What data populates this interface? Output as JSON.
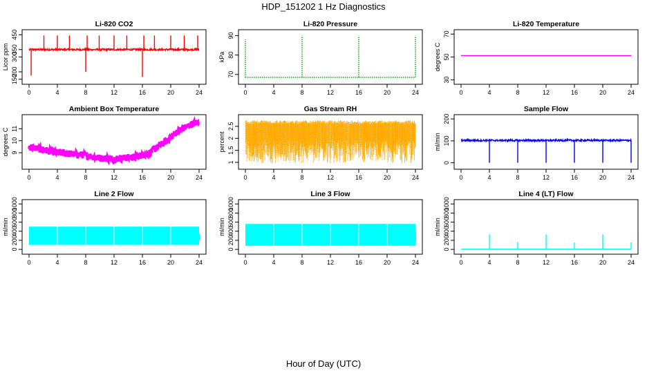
{
  "figure": {
    "title": "HDP_151202  1 Hz Diagnostics",
    "xlabel": "Hour of Day (UTC)"
  },
  "chart_data": [
    {
      "type": "line",
      "title": "Li-820 CO2",
      "ylabel": "Licor ppm",
      "color": "#ff0000",
      "xlim": [
        0,
        24
      ],
      "ylim": [
        130,
        470
      ],
      "xticks": [
        0,
        4,
        8,
        12,
        16,
        20,
        24
      ],
      "yticks": [
        150,
        200,
        300,
        350,
        450
      ],
      "series": [
        {
          "name": "CO2",
          "base": {
            "pattern": "noisy",
            "value": 350,
            "noise": 6
          },
          "spikes": [
            [
              0.3,
              175
            ],
            [
              2.1,
              445
            ],
            [
              4,
              445
            ],
            [
              5.7,
              445
            ],
            [
              8,
              200
            ],
            [
              8.2,
              445
            ],
            [
              9.9,
              445
            ],
            [
              12,
              445
            ],
            [
              13.8,
              445
            ],
            [
              16,
              165
            ],
            [
              16.2,
              445
            ],
            [
              17.7,
              445
            ],
            [
              20,
              445
            ],
            [
              21.9,
              445
            ],
            [
              23.8,
              445
            ]
          ]
        }
      ]
    },
    {
      "type": "line",
      "title": "Li-820 Pressure",
      "ylabel": "kPa",
      "color": "#00aa00",
      "style": "dotted",
      "xlim": [
        0,
        24
      ],
      "ylim": [
        66,
        92
      ],
      "xticks": [
        0,
        4,
        8,
        12,
        16,
        20,
        24
      ],
      "yticks": [
        70,
        80,
        90
      ],
      "series": [
        {
          "name": "Pressure",
          "base": {
            "pattern": "flat",
            "value": 68.5
          },
          "spikes": [
            [
              0,
              88
            ],
            [
              8,
              90
            ],
            [
              16,
              90
            ],
            [
              24,
              90
            ]
          ]
        }
      ]
    },
    {
      "type": "line",
      "title": "Li-820 Temperature",
      "ylabel": "degrees C",
      "color": "#ff00ff",
      "xlim": [
        0,
        24
      ],
      "ylim": [
        28,
        72
      ],
      "xticks": [
        0,
        4,
        8,
        12,
        16,
        20,
        24
      ],
      "yticks": [
        30,
        50,
        70
      ],
      "series": [
        {
          "name": "Temperature",
          "base": {
            "pattern": "flat",
            "value": 51.2
          },
          "spikes": []
        }
      ]
    },
    {
      "type": "line",
      "title": "Ambient Box Temperature",
      "ylabel": "degrees C",
      "color": "#ff00ff",
      "xlim": [
        0,
        24
      ],
      "ylim": [
        7.8,
        12
      ],
      "xticks": [
        0,
        4,
        8,
        12,
        16,
        20,
        24
      ],
      "yticks": [
        9,
        10,
        11
      ],
      "series": [
        {
          "name": "Box Temp",
          "base": {
            "pattern": "curve",
            "points": [
              [
                0,
                9.5
              ],
              [
                4,
                9.0
              ],
              [
                8,
                8.8
              ],
              [
                10,
                8.55
              ],
              [
                12,
                8.5
              ],
              [
                15,
                8.65
              ],
              [
                17,
                9.0
              ],
              [
                19,
                9.8
              ],
              [
                21,
                10.8
              ],
              [
                23,
                11.4
              ],
              [
                24,
                11.55
              ]
            ],
            "noise": 0.3
          },
          "spikes": []
        }
      ]
    },
    {
      "type": "line",
      "title": "Gas Stream RH",
      "ylabel": "percent",
      "color": "#ffaa00",
      "xlim": [
        0,
        24
      ],
      "ylim": [
        0.8,
        2.9
      ],
      "xticks": [
        0,
        4,
        8,
        12,
        16,
        20,
        24
      ],
      "yticks": [
        1.0,
        1.5,
        2.0,
        2.5
      ],
      "series": [
        {
          "name": "RH",
          "base": {
            "pattern": "band",
            "low": 0.95,
            "high": 2.75
          },
          "spikes": []
        }
      ]
    },
    {
      "type": "line",
      "title": "Sample Flow",
      "ylabel": "ml/min",
      "color": "#0000ff",
      "xlim": [
        0,
        24
      ],
      "ylim": [
        -20,
        210
      ],
      "xticks": [
        0,
        4,
        8,
        12,
        16,
        20,
        24
      ],
      "yticks": [
        0,
        100,
        200
      ],
      "series": [
        {
          "name": "Sample Flow",
          "base": {
            "pattern": "noisy",
            "value": 102,
            "noise": 4
          },
          "spikes": [
            [
              4,
              0
            ],
            [
              8,
              0
            ],
            [
              12,
              0
            ],
            [
              16,
              0
            ],
            [
              20,
              0
            ],
            [
              24,
              0
            ]
          ]
        }
      ]
    },
    {
      "type": "area",
      "title": "Line 2 Flow",
      "ylabel": "ml/min",
      "color": "#00ffff",
      "xlim": [
        0,
        24
      ],
      "ylim": [
        -60,
        1050
      ],
      "xticks": [
        0,
        4,
        8,
        12,
        16,
        20,
        24
      ],
      "yticks": [
        0,
        200,
        400,
        600,
        800,
        1000
      ],
      "series": [
        {
          "name": "Line 2",
          "base": {
            "pattern": "band",
            "low": 100,
            "high": 500
          },
          "spikes": []
        }
      ]
    },
    {
      "type": "area",
      "title": "Line 3 Flow",
      "ylabel": "ml/min",
      "color": "#00ffff",
      "xlim": [
        0,
        24
      ],
      "ylim": [
        -60,
        1050
      ],
      "xticks": [
        0,
        4,
        8,
        12,
        16,
        20,
        24
      ],
      "yticks": [
        0,
        200,
        400,
        600,
        800,
        1000
      ],
      "series": [
        {
          "name": "Line 3",
          "base": {
            "pattern": "band",
            "low": 80,
            "high": 560
          },
          "spikes": []
        }
      ]
    },
    {
      "type": "line",
      "title": "Line 4 (LT) Flow",
      "ylabel": "ml/min",
      "color": "#00ffff",
      "xlim": [
        0,
        24
      ],
      "ylim": [
        -60,
        1050
      ],
      "xticks": [
        0,
        4,
        8,
        12,
        16,
        20,
        24
      ],
      "yticks": [
        0,
        200,
        400,
        600,
        800,
        1000
      ],
      "series": [
        {
          "name": "Line 4",
          "base": {
            "pattern": "flat",
            "value": 5
          },
          "spikes": [
            [
              4,
              330
            ],
            [
              8,
              160
            ],
            [
              12,
              330
            ],
            [
              16,
              150
            ],
            [
              20,
              330
            ],
            [
              24,
              160
            ]
          ]
        }
      ]
    }
  ]
}
